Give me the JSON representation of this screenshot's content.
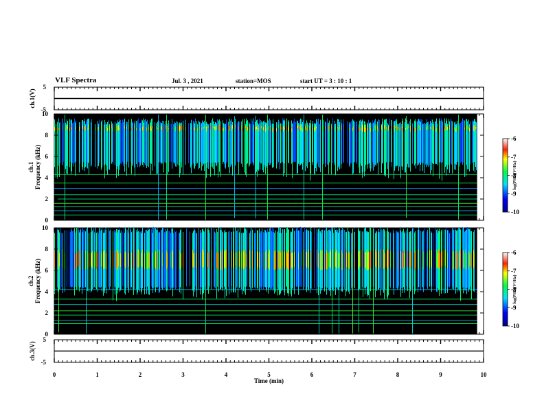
{
  "header": {
    "title": "VLF Spectra",
    "date": "Jul. 3 , 2021",
    "station": "station=MOS",
    "start_ut": "start UT =  3 : 10 : 1"
  },
  "colorbar_label": "log(PSD)(V²/Hz)",
  "colors": {
    "background": "#000000",
    "trace": "#000000"
  },
  "chart_data": [
    {
      "type": "line",
      "ylabel": "ch.1(V)",
      "ylim": [
        -5,
        5
      ],
      "yticks": [
        "5",
        "-5"
      ],
      "x": [
        0,
        10
      ],
      "series": [
        {
          "values": [
            0,
            0
          ]
        }
      ]
    },
    {
      "type": "heatmap",
      "ylabel": "ch.1 Frequency (kHz)",
      "ylim": [
        0,
        10
      ],
      "yticks": [
        "0",
        "2",
        "4",
        "6",
        "8",
        "10"
      ],
      "xlim": [
        0,
        9.85
      ],
      "color_scale": {
        "min": -10,
        "max": -6,
        "ticks": [
          "-6",
          "-7",
          "-8",
          "-9",
          "-10"
        ]
      },
      "features": {
        "emission_band_khz": [
          5.5,
          9.0
        ],
        "peak_band_khz": [
          8.3,
          9.0
        ],
        "tone_lines_khz": [
          0.5,
          0.9,
          1.3,
          1.6,
          2.0,
          2.4,
          3.0,
          3.5,
          4.3
        ]
      }
    },
    {
      "type": "heatmap",
      "ylabel": "ch.2 Frequency (kHz)",
      "ylim": [
        0,
        10
      ],
      "yticks": [
        "0",
        "2",
        "4",
        "6",
        "8",
        "10"
      ],
      "xlim": [
        0,
        9.85
      ],
      "color_scale": {
        "min": -10,
        "max": -6,
        "ticks": [
          "-6",
          "-7",
          "-8",
          "-9",
          "-10"
        ]
      },
      "features": {
        "emission_band_khz": [
          4.5,
          9.5
        ],
        "peak_band_khz": [
          6.0,
          8.0
        ],
        "tone_lines_khz": [
          1.0,
          1.3,
          1.8,
          2.2,
          2.8,
          3.3,
          4.2
        ]
      }
    },
    {
      "type": "line",
      "ylabel": "ch.3(V)",
      "ylim": [
        -5,
        5
      ],
      "yticks": [
        "5",
        "-5"
      ],
      "x": [
        0,
        10
      ],
      "series": [
        {
          "values": [
            0,
            0
          ]
        }
      ]
    }
  ],
  "x_axis": {
    "label": "Time (min)",
    "range": [
      0,
      10
    ],
    "ticks": [
      "0",
      "1",
      "2",
      "3",
      "4",
      "5",
      "6",
      "7",
      "8",
      "9",
      "10"
    ]
  }
}
